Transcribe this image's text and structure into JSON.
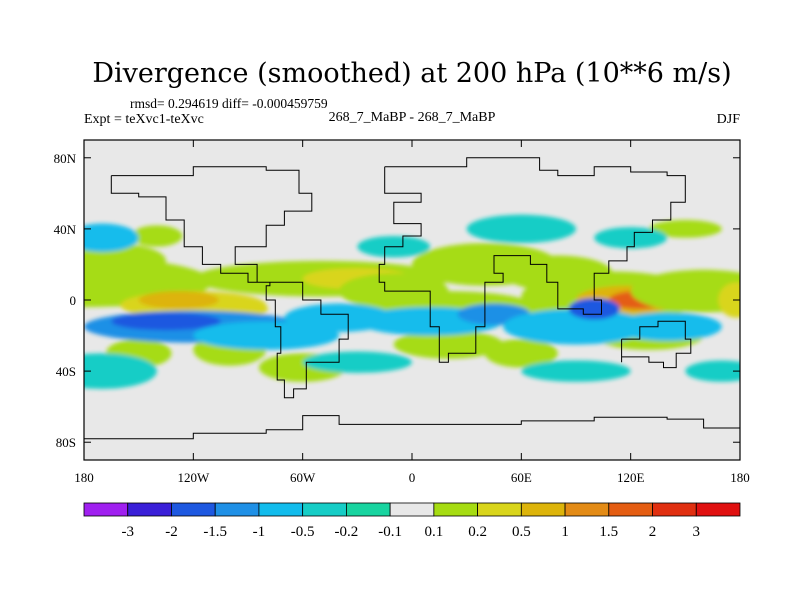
{
  "chart_data": {
    "type": "heatmap",
    "title": "Divergence (smoothed) at 200 hPa (10**6 m/s)",
    "stats_text": "rmsd= 0.294619  diff= -0.000459759",
    "left_label": "Expt = teXvc1-teXvc",
    "center_label": "268_7_MaBP - 268_7_MaBP",
    "right_label": "DJF",
    "x_axis": {
      "range": [
        -180,
        180
      ],
      "ticks": [
        -180,
        -120,
        -60,
        0,
        60,
        120,
        180
      ],
      "tick_labels": [
        "180",
        "120W",
        "60W",
        "0",
        "60E",
        "120E",
        "180"
      ]
    },
    "y_axis": {
      "range": [
        -90,
        90
      ],
      "ticks": [
        80,
        40,
        0,
        -40,
        -80
      ],
      "tick_labels": [
        "80N",
        "40N",
        "0",
        "40S",
        "80S"
      ]
    },
    "colorbar": {
      "labels": [
        "-3",
        "-2",
        "-1.5",
        "-1",
        "-0.5",
        "-0.2",
        "-0.1",
        "0.1",
        "0.2",
        "0.5",
        "1",
        "1.5",
        "2",
        "3"
      ],
      "colors": [
        "#a020f0",
        "#3a1fd8",
        "#1e58e0",
        "#1f90e6",
        "#12bcec",
        "#16cdc6",
        "#18d4a0",
        "#e8e8e8",
        "#a6dc12",
        "#d9d51b",
        "#ddb40a",
        "#e38b16",
        "#e45d12",
        "#e02f10",
        "#e01010"
      ]
    },
    "background_color": "#e8e8e8"
  }
}
